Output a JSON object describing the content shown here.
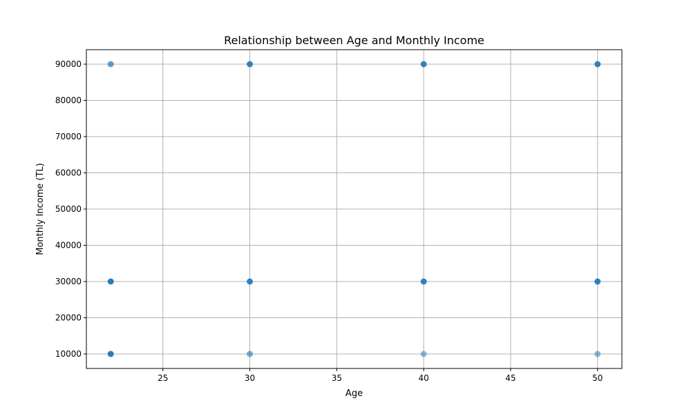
{
  "chart_data": {
    "type": "scatter",
    "title": "Relationship between Age and Monthly Income",
    "xlabel": "Age",
    "ylabel": "Monthly Income (TL)",
    "xlim": [
      20.6,
      51.4
    ],
    "ylim": [
      6000,
      94000
    ],
    "xticks": [
      25,
      30,
      35,
      40,
      45,
      50
    ],
    "yticks": [
      10000,
      20000,
      30000,
      40000,
      50000,
      60000,
      70000,
      80000,
      90000
    ],
    "grid": true,
    "marker_color": "#1f77b4",
    "points": [
      {
        "x": 22,
        "y": 90000,
        "opacity": 0.7
      },
      {
        "x": 22,
        "y": 30000,
        "opacity": 0.95
      },
      {
        "x": 22,
        "y": 10000,
        "opacity": 0.95
      },
      {
        "x": 30,
        "y": 90000,
        "opacity": 0.9
      },
      {
        "x": 30,
        "y": 30000,
        "opacity": 0.9
      },
      {
        "x": 30,
        "y": 10000,
        "opacity": 0.6
      },
      {
        "x": 40,
        "y": 90000,
        "opacity": 0.9
      },
      {
        "x": 40,
        "y": 30000,
        "opacity": 0.9
      },
      {
        "x": 40,
        "y": 10000,
        "opacity": 0.5
      },
      {
        "x": 50,
        "y": 90000,
        "opacity": 0.9
      },
      {
        "x": 50,
        "y": 30000,
        "opacity": 0.9
      },
      {
        "x": 50,
        "y": 10000,
        "opacity": 0.5
      }
    ]
  }
}
